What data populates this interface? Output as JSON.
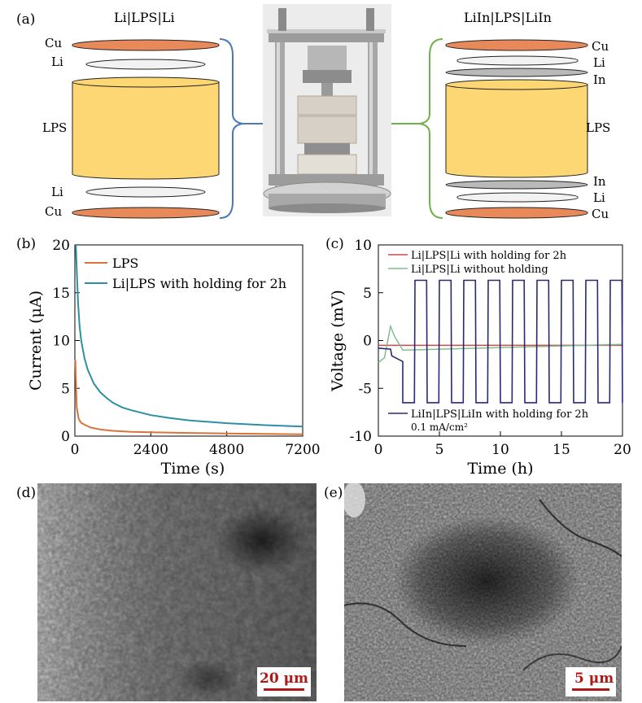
{
  "panel_a": {
    "label": "(a)",
    "left_stack": {
      "title": "Li|LPS|Li",
      "layers": [
        "Cu",
        "Li",
        "LPS",
        "Li",
        "Cu"
      ]
    },
    "right_stack": {
      "title": "LiIn|LPS|LiIn",
      "layers": [
        "Cu",
        "Li",
        "In",
        "LPS",
        "In",
        "Li",
        "Cu"
      ]
    },
    "colors": {
      "cu": "#e8895a",
      "li": "#f2f2f2",
      "in": "#b9b9b9",
      "lps": "#fdd774",
      "left_bracket": "#4a78b8",
      "right_bracket": "#6db24a"
    }
  },
  "panel_b": {
    "label": "(b)"
  },
  "panel_c": {
    "label": "(c)",
    "note": "0.1 mA/cm²"
  },
  "panel_d": {
    "label": "(d)",
    "scale_bar": "20 μm"
  },
  "panel_e": {
    "label": "(e)",
    "scale_bar": "5 μm"
  },
  "chart_data": [
    {
      "type": "line",
      "xlabel": "Time (s)",
      "ylabel": "Current (μA)",
      "xlim": [
        0,
        7200
      ],
      "ylim": [
        0,
        20
      ],
      "xticks": [
        0,
        2400,
        4800,
        7200
      ],
      "yticks": [
        0,
        5,
        10,
        15,
        20
      ],
      "legend_position": "top-right",
      "series": [
        {
          "name": "LPS",
          "color": "#d9733a",
          "x": [
            15,
            60,
            120,
            200,
            300,
            500,
            800,
            1200,
            1800,
            2400,
            3600,
            4800,
            6000,
            7200
          ],
          "y": [
            8,
            3,
            1.8,
            1.4,
            1.2,
            0.9,
            0.7,
            0.55,
            0.45,
            0.4,
            0.33,
            0.28,
            0.24,
            0.2
          ]
        },
        {
          "name": "Li|LPS with holding for 2h",
          "color": "#2e8fa3",
          "x": [
            30,
            60,
            100,
            150,
            200,
            300,
            400,
            600,
            800,
            1000,
            1200,
            1500,
            1800,
            2400,
            3000,
            3600,
            4800,
            6000,
            7200
          ],
          "y": [
            20,
            17.5,
            14,
            11.5,
            10,
            8.2,
            7,
            5.5,
            4.6,
            4,
            3.5,
            3.0,
            2.7,
            2.2,
            1.9,
            1.65,
            1.35,
            1.15,
            1.0
          ]
        }
      ]
    },
    {
      "type": "line",
      "xlabel": "Time (h)",
      "ylabel": "Voltage (mV)",
      "xlim": [
        0,
        20
      ],
      "ylim": [
        -10,
        10
      ],
      "xticks": [
        0,
        5,
        10,
        15,
        20
      ],
      "yticks": [
        -10,
        -5,
        0,
        5,
        10
      ],
      "legend_position": "top-left",
      "series": [
        {
          "name": "Li|LPS|Li with holding for 2h",
          "color": "#d04848",
          "level_mV": -0.5,
          "x_range": [
            0,
            20
          ]
        },
        {
          "name": "Li|LPS|Li without holding",
          "color": "#7fbf8f",
          "transient": [
            [
              0,
              -2.3
            ],
            [
              0.5,
              -1.8
            ],
            [
              1,
              1.5
            ],
            [
              1.3,
              0.5
            ],
            [
              2,
              -1
            ],
            [
              20,
              -0.4
            ]
          ]
        },
        {
          "name": "LiIn|LPS|LiIn with holding for 2h",
          "color": "#2a2a6e",
          "high_mV": 6.3,
          "low_mV": -6.5,
          "start_h": 2,
          "period_h": 2,
          "cycles": 9
        }
      ]
    }
  ]
}
